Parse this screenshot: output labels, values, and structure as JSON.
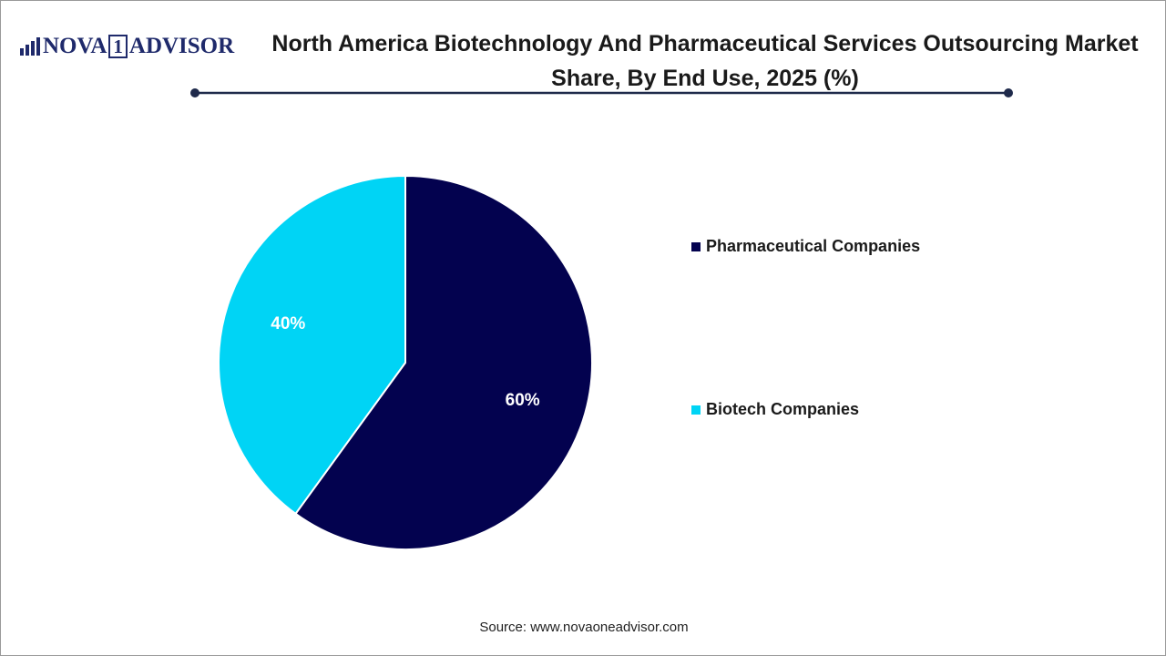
{
  "logo": {
    "left": "NOVA",
    "mark": "1",
    "right": "ADVISOR"
  },
  "chart_data": {
    "type": "pie",
    "title": "North America Biotechnology And Pharmaceutical Services Outsourcing Market Share, By End Use, 2025 (%)",
    "categories": [
      "Pharmaceutical Companies",
      "Biotech Companies"
    ],
    "values": [
      60,
      40
    ],
    "value_labels": [
      "60%",
      "40%"
    ],
    "colors": [
      "#03024f",
      "#00d4f5"
    ],
    "legend": "right"
  },
  "source": "Source: www.novaoneadvisor.com"
}
